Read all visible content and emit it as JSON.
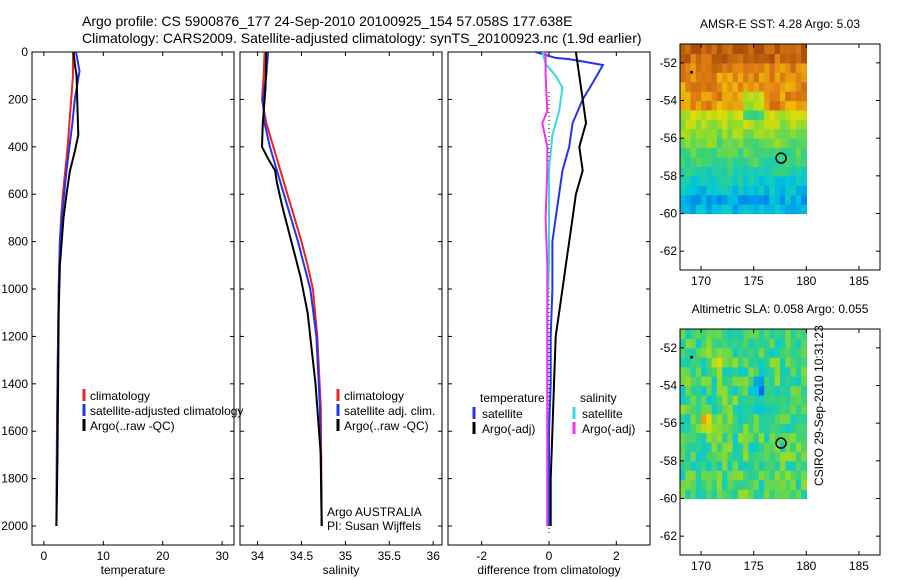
{
  "header": {
    "line1": "Argo profile: CS 5900876_177 24-Sep-2010 20100925_154 57.058S 177.638E",
    "line2": "Climatology: CARS2009. Satellite-adjusted climatology: synTS_20100923.nc (1.9d earlier)"
  },
  "stamp": "CSIRO 29-Sep-2010 10:31:23",
  "colors": {
    "climatology": "#ee2222",
    "satellite": "#2233ee",
    "argo": "#000000",
    "salinity_satellite": "#33dddd",
    "salinity_argo": "#ee33ee"
  },
  "chart_data": [
    {
      "type": "line",
      "xlabel": "temperature",
      "xlim": [
        -2,
        32
      ],
      "xticks": [
        0,
        10,
        20,
        30
      ],
      "ylim": [
        2080,
        0
      ],
      "yticks": [
        0,
        200,
        400,
        600,
        800,
        1000,
        1200,
        1400,
        1600,
        1800,
        2000
      ],
      "legend": [
        "climatology",
        "satellite-adjusted climatology",
        "Argo(..raw -QC)"
      ],
      "series": [
        {
          "name": "climatology",
          "color": "#ee2222",
          "x": [
            4.9,
            4.9,
            4.6,
            4.3,
            4.0,
            3.6,
            3.2,
            2.9,
            2.7,
            2.6,
            2.5,
            2.4,
            2.3,
            2.2,
            2.1
          ],
          "y": [
            0,
            100,
            200,
            300,
            400,
            500,
            600,
            700,
            800,
            900,
            1000,
            1200,
            1400,
            1600,
            2000
          ]
        },
        {
          "name": "satellite-adjusted climatology",
          "color": "#2233ee",
          "x": [
            5.4,
            6.0,
            5.2,
            4.8,
            4.3,
            3.8,
            3.4,
            3.0,
            2.7,
            2.6,
            2.5,
            2.4,
            2.3,
            2.2,
            2.1
          ],
          "y": [
            0,
            80,
            200,
            300,
            400,
            500,
            600,
            700,
            800,
            900,
            1000,
            1200,
            1400,
            1600,
            2000
          ]
        },
        {
          "name": "Argo(..raw -QC)",
          "color": "#000000",
          "x": [
            5.0,
            5.2,
            5.5,
            5.6,
            5.8,
            5.2,
            4.4,
            3.8,
            3.3,
            3.0,
            2.7,
            2.5,
            2.4,
            2.3,
            2.1
          ],
          "y": [
            0,
            50,
            100,
            200,
            350,
            420,
            500,
            600,
            700,
            800,
            900,
            1100,
            1400,
            1700,
            2000
          ]
        }
      ]
    },
    {
      "type": "line",
      "xlabel": "salinity",
      "xlim": [
        33.8,
        36.1
      ],
      "xticks": [
        34,
        34.5,
        35,
        35.5,
        36
      ],
      "ylim": [
        2080,
        0
      ],
      "legend": [
        "climatology",
        "satellite adj. clim.",
        "Argo(..raw -QC)"
      ],
      "annotations": [
        "Argo AUSTRALIA",
        "PI: Susan Wijffels"
      ],
      "series": [
        {
          "name": "climatology",
          "color": "#ee2222",
          "x": [
            34.08,
            34.07,
            34.05,
            34.1,
            34.18,
            34.26,
            34.34,
            34.42,
            34.5,
            34.57,
            34.63,
            34.68,
            34.72,
            34.73
          ],
          "y": [
            0,
            100,
            200,
            300,
            400,
            500,
            600,
            700,
            800,
            900,
            1000,
            1200,
            1500,
            2000
          ]
        },
        {
          "name": "satellite adj. clim.",
          "color": "#2233ee",
          "x": [
            34.12,
            34.1,
            34.06,
            34.08,
            34.14,
            34.22,
            34.3,
            34.38,
            34.46,
            34.53,
            34.6,
            34.67,
            34.71,
            34.73
          ],
          "y": [
            0,
            100,
            200,
            300,
            400,
            500,
            600,
            700,
            800,
            900,
            1000,
            1200,
            1500,
            2000
          ]
        },
        {
          "name": "Argo(..raw -QC)",
          "color": "#000000",
          "x": [
            34.1,
            34.09,
            34.06,
            34.05,
            34.12,
            34.2,
            34.22,
            34.28,
            34.35,
            34.42,
            34.49,
            34.57,
            34.66,
            34.72,
            34.73
          ],
          "y": [
            0,
            150,
            300,
            400,
            450,
            500,
            550,
            650,
            750,
            850,
            950,
            1100,
            1400,
            1700,
            2000
          ]
        }
      ]
    },
    {
      "type": "line",
      "xlabel": "difference from climatology",
      "xlim": [
        -3.0,
        3.0
      ],
      "xticks": [
        -2,
        0,
        2
      ],
      "ylim": [
        2080,
        0
      ],
      "legend": [
        {
          "group": "temperature",
          "items": [
            "satellite",
            "Argo(-adj)"
          ]
        },
        {
          "group": "salinity",
          "items": [
            "satellite",
            "Argo(-adj)"
          ]
        }
      ],
      "series": [
        {
          "name": "temperature satellite",
          "color": "#2233ee",
          "x": [
            -0.4,
            0.2,
            0.6,
            1.6,
            1.3,
            1.0,
            0.7,
            0.6,
            0.4,
            0.3,
            0.2,
            0.1,
            0.1,
            0.05,
            0.05,
            0.0,
            0.0,
            0.0
          ],
          "y": [
            0,
            25,
            30,
            55,
            130,
            200,
            300,
            400,
            500,
            600,
            700,
            800,
            1000,
            1200,
            1400,
            1600,
            1800,
            2000
          ]
        },
        {
          "name": "temperature Argo(-adj)",
          "color": "#000000",
          "x": [
            0.8,
            0.9,
            1.0,
            1.1,
            0.9,
            1.0,
            0.8,
            0.7,
            0.6,
            0.5,
            0.4,
            0.2,
            0.15,
            0.1,
            0.05,
            0.05
          ],
          "y": [
            0,
            100,
            200,
            300,
            400,
            500,
            600,
            700,
            800,
            900,
            1000,
            1200,
            1400,
            1600,
            1800,
            2000
          ]
        },
        {
          "name": "salinity satellite",
          "color": "#33dddd",
          "x": [
            -0.2,
            -0.1,
            0.2,
            0.4,
            0.3,
            0.1,
            0.0,
            0.0,
            0.0,
            -0.05,
            -0.05,
            -0.05,
            -0.05
          ],
          "y": [
            0,
            50,
            100,
            150,
            250,
            350,
            500,
            700,
            900,
            1100,
            1400,
            1700,
            2000
          ]
        },
        {
          "name": "salinity Argo(-adj)",
          "color": "#ee33ee",
          "x": [
            -0.1,
            -0.1,
            -0.05,
            -0.2,
            -0.05,
            -0.05,
            -0.1,
            -0.05,
            -0.05,
            -0.05,
            -0.05,
            -0.05
          ],
          "y": [
            0,
            100,
            250,
            300,
            400,
            500,
            700,
            900,
            1200,
            1500,
            1800,
            2000
          ]
        }
      ]
    },
    {
      "type": "heatmap",
      "title": "AMSR-E SST: 4.28 Argo: 5.03",
      "xlim": [
        168,
        187
      ],
      "xticks": [
        170,
        175,
        180,
        185
      ],
      "ylim": [
        -63,
        -51
      ],
      "yticks": [
        -52,
        -54,
        -56,
        -58,
        -60,
        -62
      ],
      "marker": {
        "lon": 177.6,
        "lat": -57.06
      }
    },
    {
      "type": "heatmap",
      "title": "Altimetric SLA: 0.058 Argo: 0.055",
      "xlim": [
        168,
        187
      ],
      "xticks": [
        170,
        175,
        180,
        185
      ],
      "ylim": [
        -63,
        -51
      ],
      "yticks": [
        -52,
        -54,
        -56,
        -58,
        -60,
        -62
      ],
      "marker": {
        "lon": 177.6,
        "lat": -57.06
      }
    }
  ]
}
